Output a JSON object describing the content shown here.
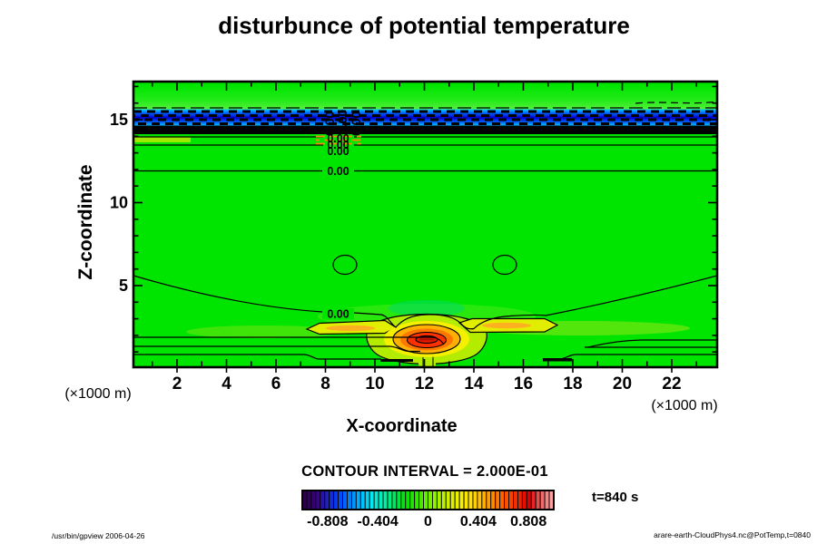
{
  "title": "disturbunce of potential temperature",
  "axes": {
    "x": {
      "label": "X-coordinate",
      "unit": "(×1000 m)"
    },
    "z": {
      "label": "Z-coordinate",
      "unit": "(×1000 m)"
    }
  },
  "plot": {
    "zero_contour_label": "0.00"
  },
  "legend": {
    "contour_interval_text": "CONTOUR INTERVAL = 2.000E-01",
    "time_label": "t=840 s",
    "colorbar_tick_labels": [
      "-0.808",
      "-0.404",
      "0",
      "0.404",
      "0.808"
    ]
  },
  "footer": {
    "left": "/usr/bin/gpview 2006-04-26",
    "right": "arare-earth-CloudPhys4.nc@PotTemp,t=0840"
  },
  "colors": {
    "field_green": "#00e500",
    "band_black": "#000000",
    "band_blue_core": "#0000d0",
    "band_blue": "#0066ff",
    "band_cyan": "#00d0ff",
    "warm_streak_orange": "#ff8800",
    "hotspot_yellowgreen": "#b4ec00",
    "hotspot_yellow": "#f4f000",
    "hotspot_orange": "#ffb000",
    "hotspot_deep_orange": "#ff7700",
    "hotspot_red": "#ff3000",
    "hotspot_core_red": "#e81800",
    "contour_line": "#000000"
  },
  "chart_data": {
    "type": "contour",
    "title": "disturbunce of potential temperature",
    "xlabel": "X-coordinate",
    "x_unit": "×1000 m",
    "xlim": [
      0.2,
      23.8
    ],
    "x_ticks": [
      2,
      4,
      6,
      8,
      10,
      12,
      14,
      16,
      18,
      20,
      22
    ],
    "x_minor_step": 1,
    "ylabel": "Z-coordinate",
    "y_unit": "×1000 m",
    "ylim": [
      0,
      17.3
    ],
    "y_ticks": [
      5,
      10,
      15
    ],
    "y_minor_step": 1,
    "grid": false,
    "contour_interval": 0.2,
    "contour_label": "0.00",
    "time": "t=840 s",
    "colorbar": {
      "range": [
        -1.01,
        1.01
      ],
      "tick_values": [
        -0.808,
        -0.404,
        0,
        0.404,
        0.808
      ],
      "stops": [
        "#2e0045",
        "#3a0080",
        "#2020c0",
        "#0040ff",
        "#0080ff",
        "#00b8ff",
        "#00e8f0",
        "#00f0b0",
        "#00e860",
        "#00e400",
        "#30e800",
        "#70ee00",
        "#a8f000",
        "#d8f000",
        "#f8f000",
        "#ffd800",
        "#ffb000",
        "#ff8000",
        "#ff5000",
        "#f02800",
        "#e00000",
        "#e86060",
        "#ffa0a0"
      ]
    },
    "features": [
      {
        "name": "background-field",
        "value": 0.0,
        "description": "near-zero disturbance (green) over most of the domain"
      },
      {
        "name": "strong-negative-band",
        "z_range": [
          14.1,
          14.7
        ],
        "x_range": [
          0.2,
          23.8
        ],
        "value": "< -1.0",
        "description": "solid black band across all x"
      },
      {
        "name": "negative-band",
        "z_range": [
          14.7,
          15.7
        ],
        "x_range": [
          0.2,
          23.8
        ],
        "value": "≈ -0.4 to -1.0",
        "description": "blue/cyan band with dashed negative contours"
      },
      {
        "name": "positive-core",
        "x": 12.1,
        "z": 1.7,
        "value": "≈ +0.9",
        "description": "concentric yellow-orange-red maximum near surface"
      },
      {
        "name": "warm-wings",
        "locations": [
          [
            8.5,
            2.4
          ],
          [
            15.0,
            2.5
          ]
        ],
        "value": "≈ +0.2 to +0.4",
        "description": "elongated yellow lobes flanking the core"
      },
      {
        "name": "zero-contour-labels",
        "label": "0.00",
        "locations": [
          [
            8.5,
            13.8
          ],
          [
            8.5,
            11.9
          ],
          [
            8.5,
            3.3
          ]
        ]
      },
      {
        "name": "closed-zero-cells",
        "locations": [
          [
            8.8,
            6.3
          ],
          [
            15.2,
            6.3
          ]
        ]
      }
    ]
  }
}
